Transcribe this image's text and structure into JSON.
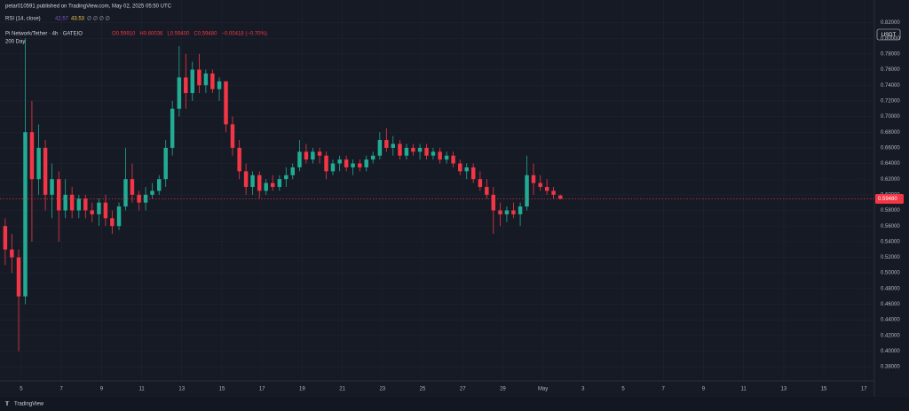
{
  "header": {
    "publisher": "petar010591 published on TradingView.com, May 02, 2025 05:50 UTC",
    "rsi": {
      "name": "RSI (14, close)",
      "value1": "42.57",
      "value2": "43.53",
      "extra": "∅ ∅ ∅ ∅"
    },
    "symbol": "Pi Network/Tether · 4h · GATEIO",
    "ohlc": [
      "O0.59910",
      "H0.60036",
      "L0.59400",
      "C0.59480",
      "−0.00418 (−0.70%)"
    ],
    "indicator": "200 Day"
  },
  "footer": {
    "brand": "TradingView"
  },
  "chart_data": {
    "type": "candlestick",
    "currency": "USDT",
    "last_label": "0.59480",
    "up_color": "#22ab94",
    "down_color": "#f23645",
    "xlim": [
      3.94,
      47.52
    ],
    "ylim": [
      0.362,
      0.849
    ],
    "grid": true,
    "xticks": [
      5,
      7,
      9,
      11,
      13,
      15,
      17,
      19,
      21,
      23,
      25,
      27,
      29,
      {
        "value": 31,
        "label": "May"
      },
      {
        "value": 33,
        "label": "3"
      },
      {
        "value": 35,
        "label": "5"
      },
      {
        "value": 37,
        "label": "7"
      },
      {
        "value": 39,
        "label": "9"
      },
      {
        "value": 41,
        "label": "11"
      },
      {
        "value": 43,
        "label": "13"
      },
      {
        "value": 45,
        "label": "15"
      },
      {
        "value": 47,
        "label": "17"
      }
    ],
    "yticks": [
      {
        "value": 0.38,
        "label": "0.38000"
      },
      {
        "value": 0.4,
        "label": "0.40000"
      },
      {
        "value": 0.42,
        "label": "0.42000"
      },
      {
        "value": 0.44,
        "label": "0.44000"
      },
      {
        "value": 0.46,
        "label": "0.46000"
      },
      {
        "value": 0.48,
        "label": "0.48000"
      },
      {
        "value": 0.5,
        "label": "0.50000"
      },
      {
        "value": 0.52,
        "label": "0.52000"
      },
      {
        "value": 0.54,
        "label": "0.54000"
      },
      {
        "value": 0.56,
        "label": "0.56000"
      },
      {
        "value": 0.58,
        "label": "0.58000"
      },
      {
        "value": 0.6,
        "label": "0.60000"
      },
      {
        "value": 0.62,
        "label": "0.62000"
      },
      {
        "value": 0.64,
        "label": "0.64000"
      },
      {
        "value": 0.66,
        "label": "0.66000"
      },
      {
        "value": 0.68,
        "label": "0.68000"
      },
      {
        "value": 0.7,
        "label": "0.70000"
      },
      {
        "value": 0.72,
        "label": "0.72000"
      },
      {
        "value": 0.74,
        "label": "0.74000"
      },
      {
        "value": 0.76,
        "label": "0.76000"
      },
      {
        "value": 0.78,
        "label": "0.78000"
      },
      {
        "value": 0.8,
        "label": "0.80000"
      },
      {
        "value": 0.82,
        "label": "0.82000"
      }
    ],
    "x": [
      4.2,
      4.53,
      4.87,
      5.2,
      5.53,
      5.87,
      6.2,
      6.53,
      6.87,
      7.2,
      7.53,
      7.87,
      8.2,
      8.53,
      8.87,
      9.2,
      9.53,
      9.87,
      10.2,
      10.53,
      10.87,
      11.2,
      11.53,
      11.87,
      12.2,
      12.53,
      12.87,
      13.2,
      13.53,
      13.87,
      14.2,
      14.53,
      14.87,
      15.2,
      15.53,
      15.87,
      16.2,
      16.53,
      16.87,
      17.2,
      17.53,
      17.87,
      18.2,
      18.53,
      18.87,
      19.2,
      19.53,
      19.87,
      20.2,
      20.53,
      20.87,
      21.2,
      21.53,
      21.87,
      22.2,
      22.53,
      22.87,
      23.2,
      23.53,
      23.87,
      24.2,
      24.53,
      24.87,
      25.2,
      25.53,
      25.87,
      26.2,
      26.53,
      26.87,
      27.2,
      27.53,
      27.87,
      28.2,
      28.53,
      28.87,
      29.2,
      29.53,
      29.87,
      30.2,
      30.53,
      30.87,
      31.2,
      31.53,
      31.87
    ],
    "open": [
      0.56,
      0.53,
      0.52,
      0.47,
      0.68,
      0.62,
      0.66,
      0.6,
      0.62,
      0.58,
      0.6,
      0.58,
      0.595,
      0.58,
      0.575,
      0.59,
      0.57,
      0.56,
      0.585,
      0.62,
      0.6,
      0.59,
      0.6,
      0.605,
      0.62,
      0.66,
      0.71,
      0.75,
      0.73,
      0.76,
      0.74,
      0.755,
      0.735,
      0.745,
      0.69,
      0.66,
      0.63,
      0.61,
      0.625,
      0.605,
      0.615,
      0.61,
      0.62,
      0.625,
      0.635,
      0.655,
      0.645,
      0.655,
      0.65,
      0.63,
      0.64,
      0.645,
      0.635,
      0.64,
      0.635,
      0.645,
      0.65,
      0.67,
      0.66,
      0.665,
      0.65,
      0.66,
      0.655,
      0.66,
      0.65,
      0.655,
      0.645,
      0.65,
      0.64,
      0.63,
      0.635,
      0.62,
      0.61,
      0.6,
      0.58,
      0.575,
      0.58,
      0.575,
      0.585,
      0.625,
      0.615,
      0.61,
      0.605,
      0.5991
    ],
    "high": [
      0.57,
      0.55,
      0.53,
      0.8,
      0.72,
      0.69,
      0.67,
      0.64,
      0.63,
      0.62,
      0.61,
      0.6,
      0.6,
      0.59,
      0.595,
      0.6,
      0.58,
      0.59,
      0.66,
      0.64,
      0.605,
      0.61,
      0.615,
      0.625,
      0.67,
      0.72,
      0.79,
      0.78,
      0.77,
      0.78,
      0.76,
      0.76,
      0.75,
      0.745,
      0.7,
      0.67,
      0.64,
      0.63,
      0.63,
      0.62,
      0.625,
      0.625,
      0.635,
      0.64,
      0.67,
      0.665,
      0.66,
      0.66,
      0.655,
      0.645,
      0.65,
      0.65,
      0.645,
      0.645,
      0.65,
      0.655,
      0.68,
      0.685,
      0.675,
      0.67,
      0.665,
      0.665,
      0.665,
      0.665,
      0.66,
      0.66,
      0.655,
      0.655,
      0.645,
      0.64,
      0.64,
      0.63,
      0.62,
      0.61,
      0.59,
      0.585,
      0.59,
      0.59,
      0.65,
      0.64,
      0.625,
      0.62,
      0.61,
      0.60036
    ],
    "low": [
      0.51,
      0.5,
      0.4,
      0.46,
      0.54,
      0.6,
      0.58,
      0.57,
      0.54,
      0.57,
      0.57,
      0.57,
      0.57,
      0.565,
      0.56,
      0.56,
      0.55,
      0.555,
      0.58,
      0.59,
      0.58,
      0.58,
      0.595,
      0.6,
      0.61,
      0.65,
      0.7,
      0.71,
      0.72,
      0.73,
      0.73,
      0.73,
      0.72,
      0.68,
      0.65,
      0.62,
      0.6,
      0.6,
      0.595,
      0.6,
      0.605,
      0.605,
      0.61,
      0.62,
      0.63,
      0.64,
      0.64,
      0.64,
      0.62,
      0.625,
      0.63,
      0.63,
      0.625,
      0.63,
      0.63,
      0.64,
      0.645,
      0.655,
      0.65,
      0.645,
      0.645,
      0.65,
      0.645,
      0.645,
      0.645,
      0.64,
      0.64,
      0.635,
      0.625,
      0.62,
      0.615,
      0.605,
      0.595,
      0.55,
      0.56,
      0.565,
      0.57,
      0.56,
      0.58,
      0.6,
      0.605,
      0.6,
      0.595,
      0.594
    ],
    "close": [
      0.53,
      0.52,
      0.47,
      0.68,
      0.62,
      0.66,
      0.6,
      0.62,
      0.58,
      0.6,
      0.58,
      0.595,
      0.58,
      0.575,
      0.59,
      0.57,
      0.56,
      0.585,
      0.62,
      0.6,
      0.59,
      0.6,
      0.605,
      0.62,
      0.66,
      0.71,
      0.75,
      0.73,
      0.76,
      0.74,
      0.755,
      0.735,
      0.745,
      0.69,
      0.66,
      0.63,
      0.61,
      0.625,
      0.605,
      0.615,
      0.61,
      0.62,
      0.625,
      0.635,
      0.655,
      0.645,
      0.655,
      0.65,
      0.63,
      0.64,
      0.645,
      0.635,
      0.64,
      0.635,
      0.645,
      0.65,
      0.67,
      0.66,
      0.665,
      0.65,
      0.66,
      0.655,
      0.66,
      0.65,
      0.655,
      0.645,
      0.65,
      0.64,
      0.63,
      0.635,
      0.62,
      0.61,
      0.6,
      0.58,
      0.575,
      0.58,
      0.575,
      0.585,
      0.625,
      0.615,
      0.61,
      0.605,
      0.6,
      0.5948
    ]
  }
}
